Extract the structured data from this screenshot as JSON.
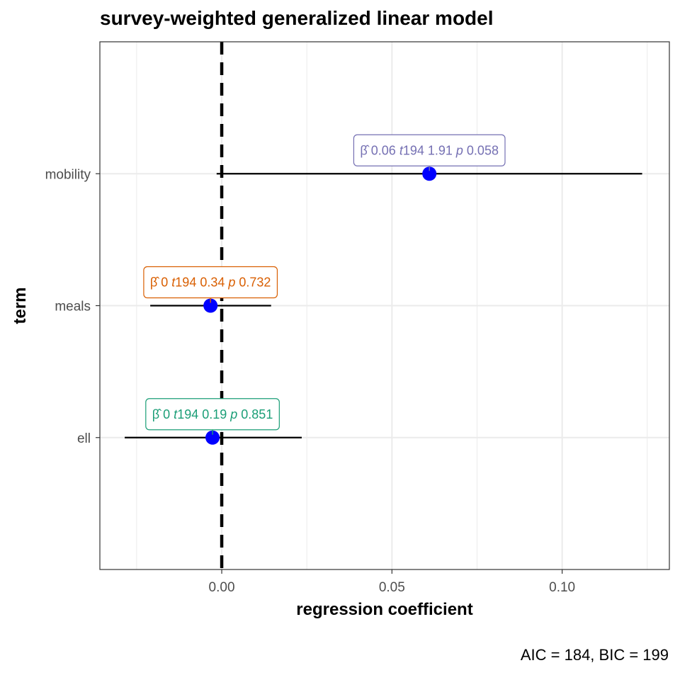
{
  "chart_data": {
    "type": "scatter",
    "title": "survey-weighted generalized linear model",
    "xlabel": "regression coefficient",
    "ylabel": "term",
    "caption": "AIC = 184, BIC = 199",
    "xlim": [
      -0.0358,
      0.1315
    ],
    "x_ticks": [
      {
        "value": 0.0,
        "label": "0.00"
      },
      {
        "value": 0.05,
        "label": "0.05"
      },
      {
        "value": 0.1,
        "label": "0.10"
      }
    ],
    "reference_line": 0,
    "grid": true,
    "point_color": "#0000ff",
    "terms": [
      {
        "term": "mobility",
        "estimate": 0.061,
        "conf_low": -0.0015,
        "conf_high": 0.1235,
        "label": "0.06  t(194) 1.91  p 0.058",
        "label_color": "#7570b3",
        "label_parts": [
          {
            "t": "β̂",
            "italic": false
          },
          {
            "t": "  0.06   ",
            "italic": false
          },
          {
            "t": "t",
            "italic": true
          },
          {
            "t": "194  1.91   ",
            "italic": false
          },
          {
            "t": "p",
            "italic": true
          },
          {
            "t": "  0.058",
            "italic": false
          }
        ]
      },
      {
        "term": "meals",
        "estimate": -0.0033,
        "conf_low": -0.021,
        "conf_high": 0.0145,
        "label": "0  t(194) 0.34  p 0.732",
        "label_color": "#d95f02",
        "label_parts": [
          {
            "t": "β̂",
            "italic": false
          },
          {
            "t": "  0   ",
            "italic": false
          },
          {
            "t": "t",
            "italic": true
          },
          {
            "t": "194   0.34   ",
            "italic": false
          },
          {
            "t": "p",
            "italic": true
          },
          {
            "t": "  0.732",
            "italic": false
          }
        ]
      },
      {
        "term": "ell",
        "estimate": -0.0027,
        "conf_low": -0.0285,
        "conf_high": 0.0235,
        "label": "0  t(194) 0.19  p 0.851",
        "label_color": "#1b9e77",
        "label_parts": [
          {
            "t": "β̂",
            "italic": false
          },
          {
            "t": "  0   ",
            "italic": false
          },
          {
            "t": "t",
            "italic": true
          },
          {
            "t": "194   0.19   ",
            "italic": false
          },
          {
            "t": "p",
            "italic": true
          },
          {
            "t": "  0.851",
            "italic": false
          }
        ]
      }
    ]
  }
}
